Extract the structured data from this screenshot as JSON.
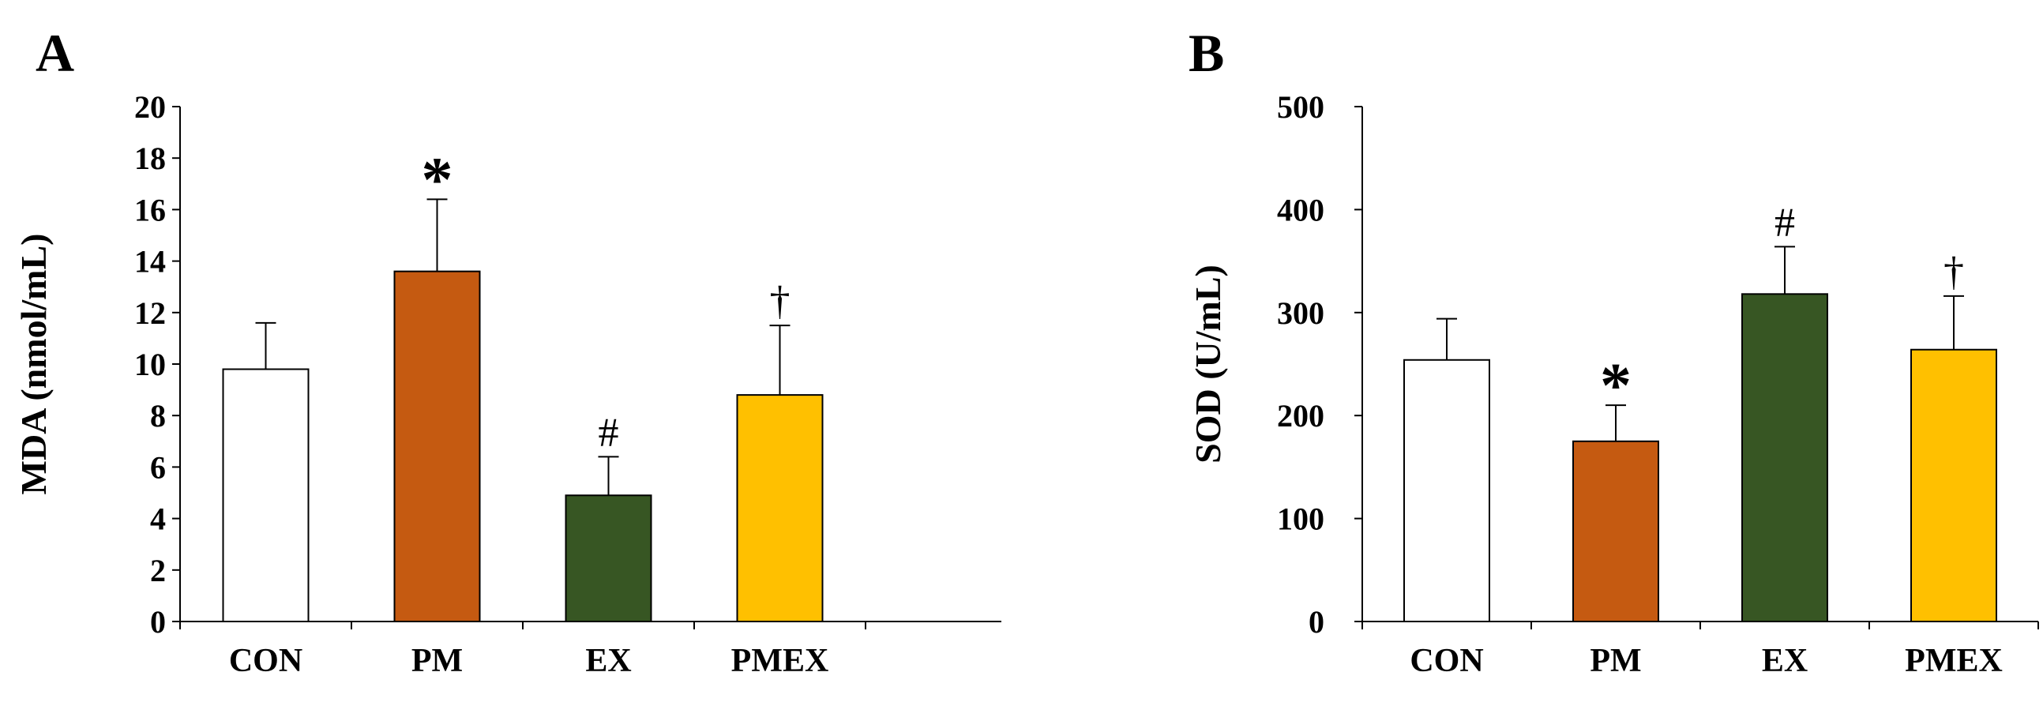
{
  "chart_data": [
    {
      "type": "bar",
      "panel_label": "A",
      "categories": [
        "CON",
        "PM",
        "EX",
        "PMEX"
      ],
      "values": [
        9.8,
        13.6,
        4.9,
        8.8
      ],
      "error_plus": [
        1.8,
        2.8,
        1.5,
        2.7
      ],
      "annotations": [
        "",
        "*",
        "#",
        "†"
      ],
      "bar_colors": [
        "#ffffff",
        "#c55a11",
        "#375623",
        "#ffc000"
      ],
      "ylabel": "MDA (nmol/mL)",
      "ylim": [
        0,
        20
      ],
      "yticks": [
        0,
        2,
        4,
        6,
        8,
        10,
        12,
        14,
        16,
        18,
        20
      ],
      "grid": false
    },
    {
      "type": "bar",
      "panel_label": "B",
      "categories": [
        "CON",
        "PM",
        "EX",
        "PMEX"
      ],
      "values": [
        254,
        175,
        318,
        264
      ],
      "error_plus": [
        40,
        35,
        46,
        52
      ],
      "annotations": [
        "",
        "*",
        "#",
        "†"
      ],
      "bar_colors": [
        "#ffffff",
        "#c55a11",
        "#375623",
        "#ffc000"
      ],
      "ylabel": "SOD (U/mL)",
      "ylim": [
        0,
        500
      ],
      "yticks": [
        0,
        100,
        200,
        300,
        400,
        500
      ],
      "grid": false
    }
  ]
}
